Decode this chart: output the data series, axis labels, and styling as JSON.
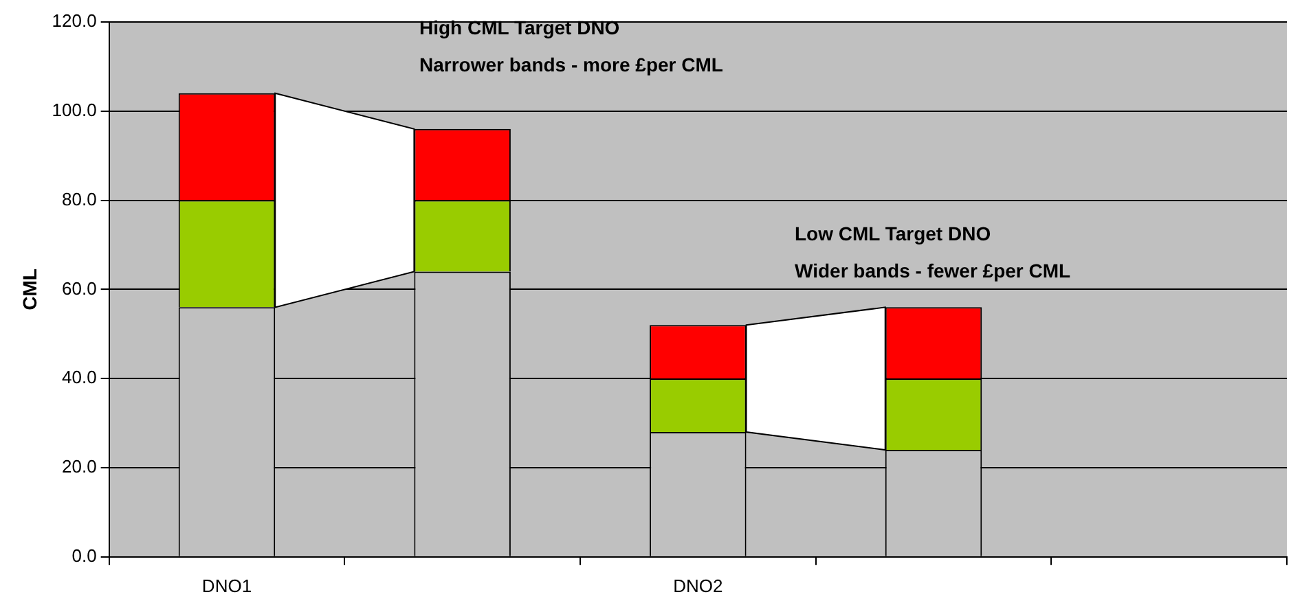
{
  "chart_data": {
    "type": "bar",
    "stacked": true,
    "ylabel": "CML",
    "categories": [
      "DNO1",
      null,
      "DNO2",
      null,
      null
    ],
    "series": [
      {
        "color": "#c0c0c0",
        "values": [
          56,
          64,
          28,
          24,
          null
        ]
      },
      {
        "color": "#99cc00",
        "values": [
          24,
          16,
          12,
          16,
          null
        ]
      },
      {
        "color": "#ff0000",
        "values": [
          24,
          16,
          12,
          16,
          null
        ]
      }
    ],
    "ylim": [
      0,
      120
    ],
    "yticks": [
      {
        "value": 0,
        "label": "0.0"
      },
      {
        "value": 20,
        "label": "20.0"
      },
      {
        "value": 40,
        "label": "40.0"
      },
      {
        "value": 60,
        "label": "60.0"
      },
      {
        "value": 80,
        "label": "80.0"
      },
      {
        "value": 100,
        "label": "100.0"
      },
      {
        "value": 120,
        "label": "120.0"
      }
    ],
    "grid": "y",
    "legend": false,
    "annotations": [
      "High CML Target DNO\nNarrower bands - more £per CML",
      "Low CML Target DNO\nWider bands - fewer £per CML"
    ]
  }
}
